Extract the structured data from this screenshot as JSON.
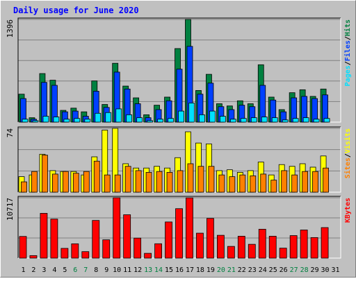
{
  "title": "Daily usage for June 2020",
  "colors": {
    "background": "#C0C0C0",
    "hits": "#008040",
    "files": "#0040FF",
    "pages": "#00E0FF",
    "visits": "#FFFF00",
    "sites": "#FF8000",
    "kbytes": "#FF0000",
    "title_text": "#0000FF",
    "weekend_label": "#008040"
  },
  "chart_data": [
    {
      "type": "bar",
      "panel": "hits-files-pages",
      "axis_max_label": "1396",
      "ylim": [
        0,
        1396
      ],
      "grid": true,
      "legend": {
        "position": "right",
        "items": [
          "Pages",
          "/",
          "Files",
          "/",
          "Hits"
        ]
      },
      "categories": [
        "1",
        "2",
        "3",
        "4",
        "5",
        "6",
        "7",
        "8",
        "9",
        "10",
        "11",
        "12",
        "13",
        "14",
        "15",
        "16",
        "17",
        "18",
        "19",
        "20",
        "21",
        "22",
        "23",
        "24",
        "25",
        "26",
        "27",
        "28",
        "29",
        "30",
        "31"
      ],
      "series": [
        {
          "name": "Hits",
          "values": [
            380,
            60,
            660,
            570,
            160,
            190,
            140,
            560,
            240,
            800,
            490,
            330,
            100,
            230,
            340,
            1000,
            1396,
            430,
            650,
            250,
            220,
            290,
            250,
            780,
            340,
            170,
            400,
            440,
            350,
            450,
            0
          ]
        },
        {
          "name": "Files",
          "values": [
            320,
            40,
            540,
            500,
            140,
            150,
            80,
            420,
            200,
            680,
            450,
            250,
            60,
            170,
            290,
            720,
            1030,
            380,
            530,
            210,
            170,
            230,
            210,
            500,
            300,
            140,
            330,
            350,
            320,
            370,
            0
          ]
        },
        {
          "name": "Pages",
          "values": [
            40,
            20,
            80,
            70,
            40,
            50,
            40,
            120,
            130,
            180,
            100,
            60,
            20,
            40,
            50,
            150,
            260,
            100,
            150,
            80,
            40,
            50,
            60,
            70,
            60,
            30,
            50,
            60,
            40,
            50,
            0
          ]
        }
      ]
    },
    {
      "type": "bar",
      "panel": "visits-sites",
      "axis_max_label": "74",
      "ylim": [
        0,
        74
      ],
      "grid": true,
      "legend": {
        "position": "right",
        "items": [
          "Sites",
          "/",
          "Visits"
        ]
      },
      "categories": [
        "1",
        "2",
        "3",
        "4",
        "5",
        "6",
        "7",
        "8",
        "9",
        "10",
        "11",
        "12",
        "13",
        "14",
        "15",
        "16",
        "17",
        "18",
        "19",
        "20",
        "21",
        "22",
        "23",
        "24",
        "25",
        "26",
        "27",
        "28",
        "29",
        "30",
        "31"
      ],
      "series": [
        {
          "name": "Visits",
          "values": [
            18,
            20,
            44,
            25,
            24,
            24,
            20,
            41,
            72,
            74,
            33,
            28,
            28,
            30,
            28,
            40,
            70,
            57,
            56,
            25,
            26,
            23,
            25,
            35,
            20,
            32,
            30,
            33,
            29,
            42,
            0
          ]
        },
        {
          "name": "Sites",
          "values": [
            12,
            24,
            43,
            21,
            24,
            22,
            24,
            36,
            20,
            20,
            30,
            25,
            23,
            24,
            23,
            25,
            33,
            30,
            30,
            20,
            18,
            20,
            19,
            21,
            14,
            25,
            20,
            24,
            24,
            28,
            0
          ]
        }
      ]
    },
    {
      "type": "bar",
      "panel": "kbytes",
      "axis_max_label": "10717",
      "ylim": [
        0,
        10717
      ],
      "grid": true,
      "legend": {
        "position": "right",
        "items": [
          "KBytes"
        ]
      },
      "categories": [
        "1",
        "2",
        "3",
        "4",
        "5",
        "6",
        "7",
        "8",
        "9",
        "10",
        "11",
        "12",
        "13",
        "14",
        "15",
        "16",
        "17",
        "18",
        "19",
        "20",
        "21",
        "22",
        "23",
        "24",
        "25",
        "26",
        "27",
        "28",
        "29",
        "30",
        "31"
      ],
      "series": [
        {
          "name": "KBytes",
          "values": [
            3850,
            450,
            7950,
            6930,
            1730,
            2540,
            1150,
            6690,
            3250,
            10717,
            7700,
            3550,
            850,
            2550,
            6420,
            8780,
            10700,
            4430,
            7050,
            4050,
            2080,
            3890,
            2450,
            5130,
            3890,
            1770,
            4000,
            5000,
            3650,
            5420,
            0
          ]
        }
      ]
    }
  ],
  "x_axis": {
    "labels": [
      "1",
      "2",
      "3",
      "4",
      "5",
      "6",
      "7",
      "8",
      "9",
      "10",
      "11",
      "12",
      "13",
      "14",
      "15",
      "16",
      "17",
      "18",
      "19",
      "20",
      "21",
      "22",
      "23",
      "24",
      "25",
      "26",
      "27",
      "28",
      "29",
      "30",
      "31"
    ],
    "weekend": [
      6,
      7,
      13,
      14,
      20,
      21,
      27,
      28
    ]
  }
}
